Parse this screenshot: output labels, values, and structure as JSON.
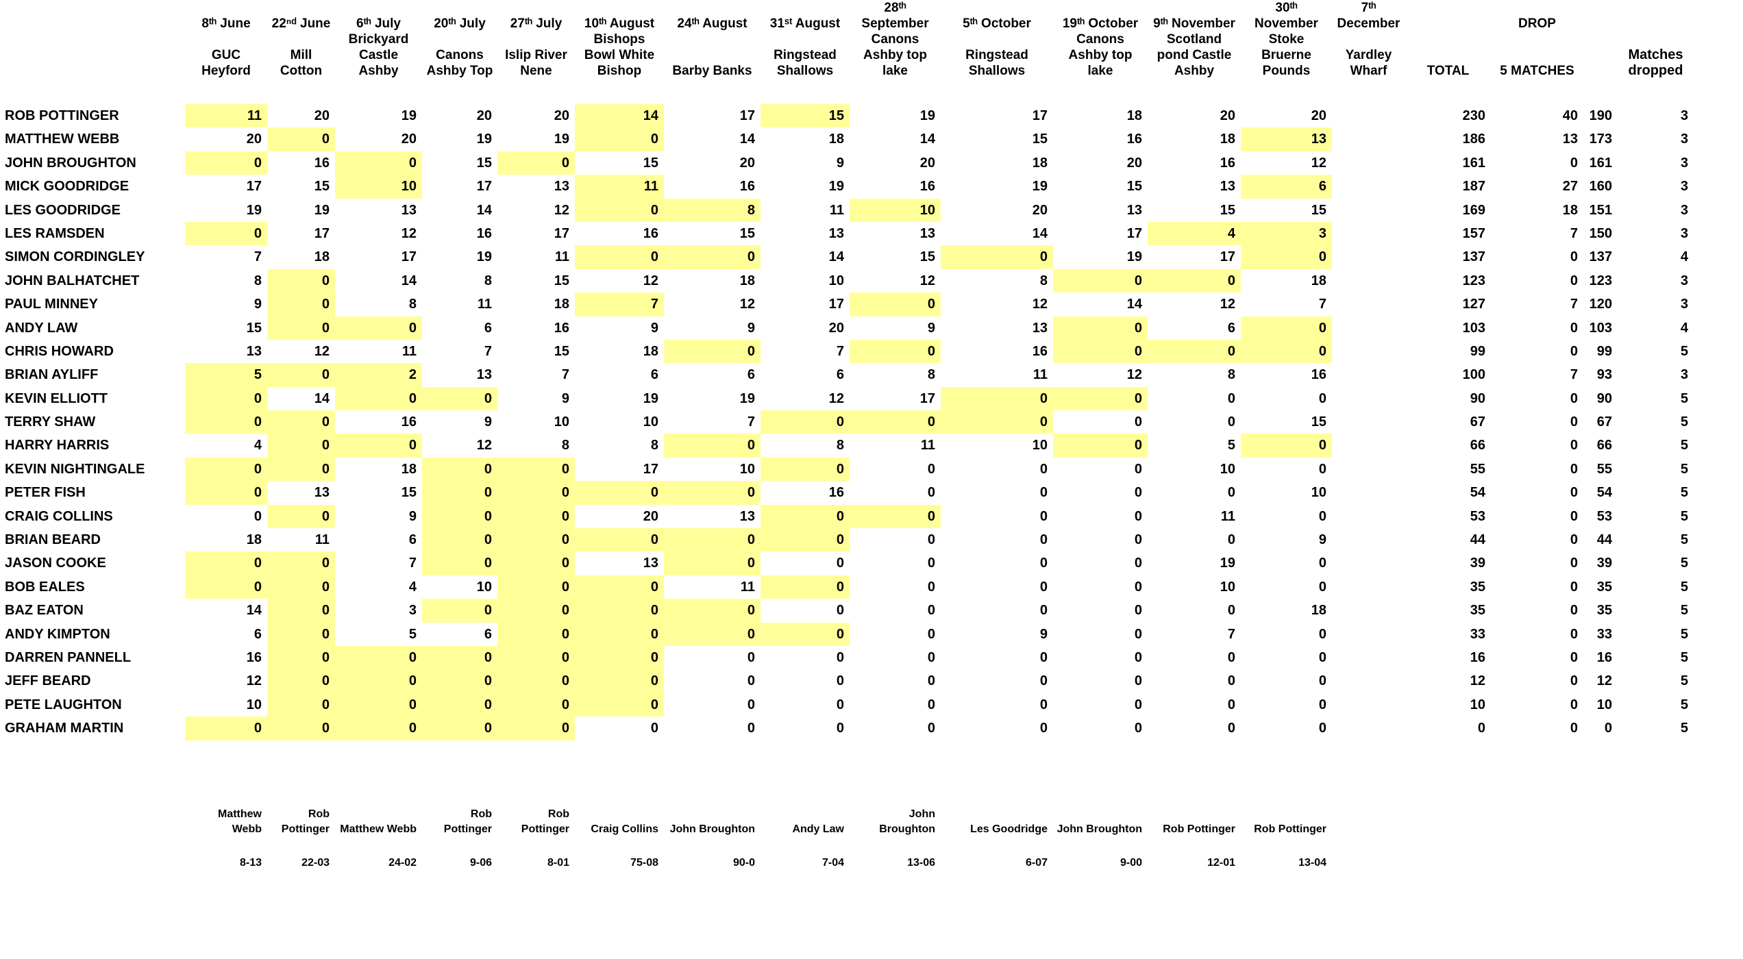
{
  "league_table": {
    "matches": [
      {
        "date": "8th June",
        "venue": "GUC Heyford",
        "header_lines": [
          "8ᵗʰ June",
          "",
          "GUC",
          "Heyford"
        ],
        "winner": "Matthew\nWebb",
        "winning_weight": "8-13"
      },
      {
        "date": "22nd June",
        "venue": "Mill Cotton",
        "header_lines": [
          "22ⁿᵈ June",
          "",
          "Mill",
          "Cotton"
        ],
        "winner": "Rob\nPottinger",
        "winning_weight": "22-03"
      },
      {
        "date": "6th July",
        "venue": "Brickyard Castle Ashby",
        "header_lines": [
          "6ᵗʰ July",
          "Brickyard",
          "Castle",
          "Ashby"
        ],
        "winner": "Matthew Webb",
        "winning_weight": "24-02"
      },
      {
        "date": "20th July",
        "venue": "Canons Ashby Top",
        "header_lines": [
          "20ᵗʰ July",
          "",
          "Canons",
          "Ashby Top"
        ],
        "winner": "Rob\nPottinger",
        "winning_weight": "9-06"
      },
      {
        "date": "27th July",
        "venue": "Islip River Nene",
        "header_lines": [
          "27ᵗʰ July",
          "",
          "Islip River",
          "Nene"
        ],
        "winner": "Rob\nPottinger",
        "winning_weight": "8-01"
      },
      {
        "date": "10th August",
        "venue": "Bishops Bowl White Bishop",
        "header_lines": [
          "10ᵗʰ August",
          "Bishops",
          "Bowl White",
          "Bishop"
        ],
        "winner": "Craig Collins",
        "winning_weight": "75-08"
      },
      {
        "date": "24th August",
        "venue": "Barby Banks",
        "header_lines": [
          "24ᵗʰ August",
          "",
          "",
          "Barby Banks"
        ],
        "winner": "John Broughton",
        "winning_weight": "90-0"
      },
      {
        "date": "31st August",
        "venue": "Ringstead Shallows",
        "header_lines": [
          "31ˢᵗ August",
          "",
          "Ringstead",
          "Shallows"
        ],
        "winner": "Andy Law",
        "winning_weight": "7-04"
      },
      {
        "date": "28th September",
        "venue": "Canons Ashby top lake",
        "header_lines": [
          "28ᵗʰ",
          "September",
          "Canons",
          "Ashby top",
          "lake"
        ],
        "winner": "John\nBroughton",
        "winning_weight": "13-06"
      },
      {
        "date": "5th October",
        "venue": "Ringstead Shallows",
        "header_lines": [
          "5ᵗʰ October",
          "",
          "Ringstead",
          "Shallows"
        ],
        "winner": "Les Goodridge",
        "winning_weight": "6-07"
      },
      {
        "date": "19th October",
        "venue": "Canons Ashby top lake",
        "header_lines": [
          "19ᵗʰ October",
          "Canons",
          "Ashby top",
          "lake"
        ],
        "winner": "John Broughton",
        "winning_weight": "9-00"
      },
      {
        "date": "9th November",
        "venue": "Scotland pond Castle Ashby",
        "header_lines": [
          "9ᵗʰ November",
          "Scotland",
          "pond Castle",
          "Ashby"
        ],
        "winner": "Rob Pottinger",
        "winning_weight": "12-01"
      },
      {
        "date": "30th November",
        "venue": "Stoke Bruerne Pounds",
        "header_lines": [
          "30ᵗʰ",
          "November",
          "Stoke",
          "Bruerne",
          "Pounds"
        ],
        "winner": "Rob Pottinger",
        "winning_weight": "13-04"
      },
      {
        "date": "7th December",
        "venue": "Yardley Wharf",
        "header_lines": [
          "7ᵗʰ",
          "December",
          "",
          "Yardley",
          "Wharf"
        ],
        "winner": "",
        "winning_weight": ""
      }
    ],
    "summary": {
      "total_header": "TOTAL",
      "drop_header": "DROP",
      "drop_sub_header": "5 MATCHES",
      "matches_dropped_header": "Matches\ndropped"
    },
    "anglers": [
      {
        "name": "ROB POTTINGER",
        "scores": [
          11,
          20,
          19,
          20,
          20,
          14,
          17,
          15,
          19,
          17,
          18,
          20,
          20
        ],
        "dropped_score_cols": [
          0,
          5,
          7
        ],
        "total": 230,
        "drop_points": 40,
        "total_after_drop": 190,
        "matches_dropped": 3
      },
      {
        "name": "MATTHEW WEBB",
        "scores": [
          20,
          0,
          20,
          19,
          19,
          0,
          14,
          18,
          14,
          15,
          16,
          18,
          13
        ],
        "dropped_score_cols": [
          1,
          5,
          12
        ],
        "total": 186,
        "drop_points": 13,
        "total_after_drop": 173,
        "matches_dropped": 3
      },
      {
        "name": "JOHN BROUGHTON",
        "scores": [
          0,
          16,
          0,
          15,
          0,
          15,
          20,
          9,
          20,
          18,
          20,
          16,
          12
        ],
        "dropped_score_cols": [
          0,
          2,
          4
        ],
        "total": 161,
        "drop_points": 0,
        "total_after_drop": 161,
        "matches_dropped": 3
      },
      {
        "name": "MICK GOODRIDGE",
        "scores": [
          17,
          15,
          10,
          17,
          13,
          11,
          16,
          19,
          16,
          19,
          15,
          13,
          6
        ],
        "dropped_score_cols": [
          2,
          5,
          12
        ],
        "total": 187,
        "drop_points": 27,
        "total_after_drop": 160,
        "matches_dropped": 3
      },
      {
        "name": "LES GOODRIDGE",
        "scores": [
          19,
          19,
          13,
          14,
          12,
          0,
          8,
          11,
          10,
          20,
          13,
          15,
          15
        ],
        "dropped_score_cols": [
          5,
          6,
          8
        ],
        "total": 169,
        "drop_points": 18,
        "total_after_drop": 151,
        "matches_dropped": 3
      },
      {
        "name": "LES RAMSDEN",
        "scores": [
          0,
          17,
          12,
          16,
          17,
          16,
          15,
          13,
          13,
          14,
          17,
          4,
          3
        ],
        "dropped_score_cols": [
          0,
          11,
          12
        ],
        "total": 157,
        "drop_points": 7,
        "total_after_drop": 150,
        "matches_dropped": 3
      },
      {
        "name": "SIMON CORDINGLEY",
        "scores": [
          7,
          18,
          17,
          19,
          11,
          0,
          0,
          14,
          15,
          0,
          19,
          17,
          0
        ],
        "dropped_score_cols": [
          5,
          6,
          9,
          12
        ],
        "total": 137,
        "drop_points": 0,
        "total_after_drop": 137,
        "matches_dropped": 4
      },
      {
        "name": "JOHN BALHATCHET",
        "scores": [
          8,
          0,
          14,
          8,
          15,
          12,
          18,
          10,
          12,
          8,
          0,
          0,
          18
        ],
        "dropped_score_cols": [
          1,
          10,
          11
        ],
        "total": 123,
        "drop_points": 0,
        "total_after_drop": 123,
        "matches_dropped": 3
      },
      {
        "name": "PAUL MINNEY",
        "scores": [
          9,
          0,
          8,
          11,
          18,
          7,
          12,
          17,
          0,
          12,
          14,
          12,
          7
        ],
        "dropped_score_cols": [
          1,
          5,
          8
        ],
        "total": 127,
        "drop_points": 7,
        "total_after_drop": 120,
        "matches_dropped": 3
      },
      {
        "name": "ANDY LAW",
        "scores": [
          15,
          0,
          0,
          6,
          16,
          9,
          9,
          20,
          9,
          13,
          0,
          6,
          0
        ],
        "dropped_score_cols": [
          1,
          2,
          10,
          12
        ],
        "total": 103,
        "drop_points": 0,
        "total_after_drop": 103,
        "matches_dropped": 4
      },
      {
        "name": "CHRIS HOWARD",
        "scores": [
          13,
          12,
          11,
          7,
          15,
          18,
          0,
          7,
          0,
          16,
          0,
          0,
          0
        ],
        "dropped_score_cols": [
          6,
          8,
          10,
          11,
          12
        ],
        "total": 99,
        "drop_points": 0,
        "total_after_drop": 99,
        "matches_dropped": 5
      },
      {
        "name": "BRIAN AYLIFF",
        "scores": [
          5,
          0,
          2,
          13,
          7,
          6,
          6,
          6,
          8,
          11,
          12,
          8,
          16
        ],
        "dropped_score_cols": [
          0,
          1,
          2
        ],
        "total": 100,
        "drop_points": 7,
        "total_after_drop": 93,
        "matches_dropped": 3
      },
      {
        "name": "KEVIN ELLIOTT",
        "scores": [
          0,
          14,
          0,
          0,
          9,
          19,
          19,
          12,
          17,
          0,
          0,
          0,
          0
        ],
        "dropped_score_cols": [
          0,
          2,
          3,
          9,
          10
        ],
        "total": 90,
        "drop_points": 0,
        "total_after_drop": 90,
        "matches_dropped": 5
      },
      {
        "name": "TERRY SHAW",
        "scores": [
          0,
          0,
          16,
          9,
          10,
          10,
          7,
          0,
          0,
          0,
          0,
          0,
          15
        ],
        "dropped_score_cols": [
          0,
          1,
          7,
          8,
          9
        ],
        "total": 67,
        "drop_points": 0,
        "total_after_drop": 67,
        "matches_dropped": 5
      },
      {
        "name": "HARRY HARRIS",
        "scores": [
          4,
          0,
          0,
          12,
          8,
          8,
          0,
          8,
          11,
          10,
          0,
          5,
          0
        ],
        "dropped_score_cols": [
          1,
          2,
          6,
          10,
          12
        ],
        "total": 66,
        "drop_points": 0,
        "total_after_drop": 66,
        "matches_dropped": 5
      },
      {
        "name": "KEVIN NIGHTINGALE",
        "scores": [
          0,
          0,
          18,
          0,
          0,
          17,
          10,
          0,
          0,
          0,
          0,
          10,
          0
        ],
        "dropped_score_cols": [
          0,
          1,
          3,
          4,
          7
        ],
        "total": 55,
        "drop_points": 0,
        "total_after_drop": 55,
        "matches_dropped": 5
      },
      {
        "name": "PETER FISH",
        "scores": [
          0,
          13,
          15,
          0,
          0,
          0,
          0,
          16,
          0,
          0,
          0,
          0,
          10
        ],
        "dropped_score_cols": [
          0,
          3,
          4,
          5,
          6
        ],
        "total": 54,
        "drop_points": 0,
        "total_after_drop": 54,
        "matches_dropped": 5
      },
      {
        "name": "CRAIG COLLINS",
        "scores": [
          0,
          0,
          9,
          0,
          0,
          20,
          13,
          0,
          0,
          0,
          0,
          11,
          0
        ],
        "dropped_score_cols": [
          1,
          3,
          4,
          7,
          8
        ],
        "total": 53,
        "drop_points": 0,
        "total_after_drop": 53,
        "matches_dropped": 5
      },
      {
        "name": "BRIAN BEARD",
        "scores": [
          18,
          11,
          6,
          0,
          0,
          0,
          0,
          0,
          0,
          0,
          0,
          0,
          9
        ],
        "dropped_score_cols": [
          3,
          4,
          5,
          6,
          7
        ],
        "total": 44,
        "drop_points": 0,
        "total_after_drop": 44,
        "matches_dropped": 5
      },
      {
        "name": "JASON COOKE",
        "scores": [
          0,
          0,
          7,
          0,
          0,
          13,
          0,
          0,
          0,
          0,
          0,
          19,
          0
        ],
        "dropped_score_cols": [
          0,
          1,
          3,
          4,
          6
        ],
        "total": 39,
        "drop_points": 0,
        "total_after_drop": 39,
        "matches_dropped": 5
      },
      {
        "name": "BOB EALES",
        "scores": [
          0,
          0,
          4,
          10,
          0,
          0,
          11,
          0,
          0,
          0,
          0,
          10,
          0
        ],
        "dropped_score_cols": [
          0,
          1,
          4,
          5,
          7
        ],
        "total": 35,
        "drop_points": 0,
        "total_after_drop": 35,
        "matches_dropped": 5
      },
      {
        "name": "BAZ EATON",
        "scores": [
          14,
          0,
          3,
          0,
          0,
          0,
          0,
          0,
          0,
          0,
          0,
          0,
          18
        ],
        "dropped_score_cols": [
          1,
          3,
          4,
          5,
          6
        ],
        "total": 35,
        "drop_points": 0,
        "total_after_drop": 35,
        "matches_dropped": 5
      },
      {
        "name": "ANDY KIMPTON",
        "scores": [
          6,
          0,
          5,
          6,
          0,
          0,
          0,
          0,
          0,
          9,
          0,
          7,
          0
        ],
        "dropped_score_cols": [
          1,
          4,
          5,
          6,
          7
        ],
        "total": 33,
        "drop_points": 0,
        "total_after_drop": 33,
        "matches_dropped": 5
      },
      {
        "name": "DARREN PANNELL",
        "scores": [
          16,
          0,
          0,
          0,
          0,
          0,
          0,
          0,
          0,
          0,
          0,
          0,
          0
        ],
        "dropped_score_cols": [
          1,
          2,
          3,
          4,
          5
        ],
        "total": 16,
        "drop_points": 0,
        "total_after_drop": 16,
        "matches_dropped": 5
      },
      {
        "name": "JEFF BEARD",
        "scores": [
          12,
          0,
          0,
          0,
          0,
          0,
          0,
          0,
          0,
          0,
          0,
          0,
          0
        ],
        "dropped_score_cols": [
          1,
          2,
          3,
          4,
          5
        ],
        "total": 12,
        "drop_points": 0,
        "total_after_drop": 12,
        "matches_dropped": 5
      },
      {
        "name": "PETE LAUGHTON",
        "scores": [
          10,
          0,
          0,
          0,
          0,
          0,
          0,
          0,
          0,
          0,
          0,
          0,
          0
        ],
        "dropped_score_cols": [
          1,
          2,
          3,
          4,
          5
        ],
        "total": 10,
        "drop_points": 0,
        "total_after_drop": 10,
        "matches_dropped": 5
      },
      {
        "name": "GRAHAM MARTIN",
        "scores": [
          0,
          0,
          0,
          0,
          0,
          0,
          0,
          0,
          0,
          0,
          0,
          0,
          0
        ],
        "dropped_score_cols": [
          0,
          1,
          2,
          3,
          4
        ],
        "total": 0,
        "drop_points": 0,
        "total_after_drop": 0,
        "matches_dropped": 5
      }
    ]
  },
  "colors": {
    "drop_highlight": "#ffff99",
    "text": "#000000",
    "background": "#ffffff"
  }
}
